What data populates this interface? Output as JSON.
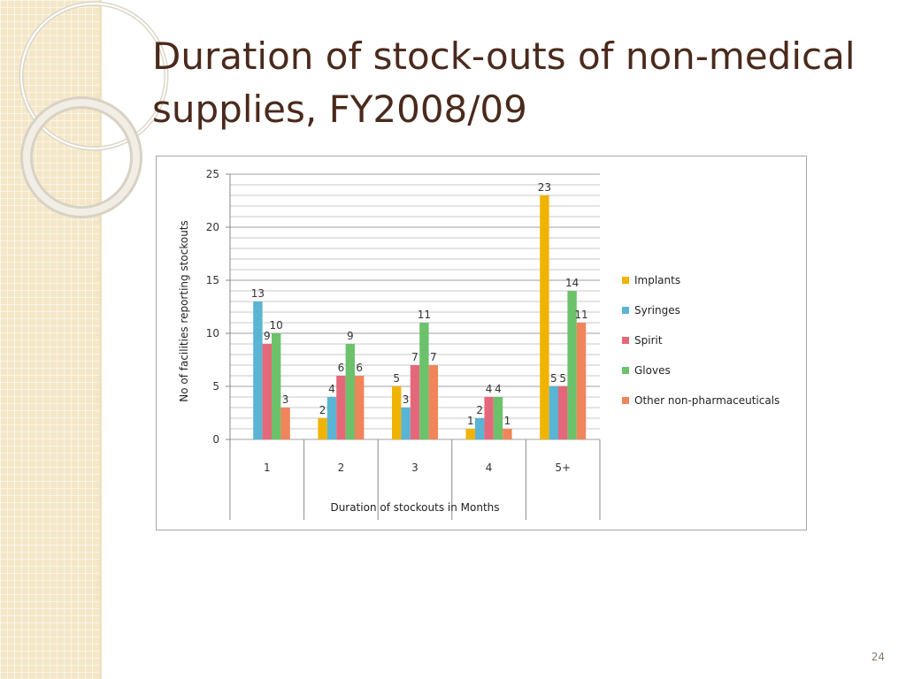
{
  "slide": {
    "title": "Duration of stock-outs of non-medical supplies, FY2008/09",
    "page_number": "24"
  },
  "chart_data": {
    "type": "bar",
    "xlabel": "Duration of stockouts in Months",
    "ylabel": "No of facilities reporting stockouts",
    "ylim": [
      0,
      25
    ],
    "yticks": [
      0,
      5,
      10,
      15,
      20,
      25
    ],
    "grid": true,
    "legend_position": "right",
    "categories": [
      "1",
      "2",
      "3",
      "4",
      "5+"
    ],
    "series": [
      {
        "name": "Implants",
        "color": "#f0b400",
        "values": [
          0,
          2,
          5,
          1,
          23
        ]
      },
      {
        "name": "Syringes",
        "color": "#5ab4d4",
        "values": [
          13,
          4,
          3,
          2,
          5
        ]
      },
      {
        "name": "Spirit",
        "color": "#e5687a",
        "values": [
          9,
          6,
          7,
          4,
          5
        ]
      },
      {
        "name": "Gloves",
        "color": "#6cc26a",
        "values": [
          10,
          9,
          11,
          4,
          14
        ]
      },
      {
        "name": "Other non-pharmaceuticals",
        "color": "#f0845a",
        "values": [
          3,
          6,
          7,
          1,
          11
        ]
      }
    ]
  }
}
